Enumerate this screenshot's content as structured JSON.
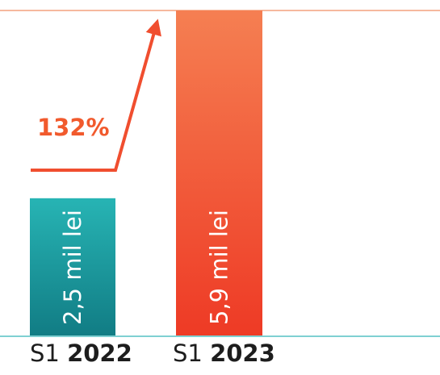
{
  "chart_data": {
    "type": "bar",
    "categories": [
      {
        "prefix": "S1",
        "year": "2022"
      },
      {
        "prefix": "S1",
        "year": "2023"
      }
    ],
    "values": [
      2.5,
      5.9
    ],
    "data_labels": [
      "2,5 mil lei",
      "5,9 mil lei"
    ],
    "ylim": [
      0,
      5.9
    ],
    "annotation": "132%",
    "grid": false,
    "colors": {
      "bar_2022_top": "#27b4b4",
      "bar_2022_bottom": "#117c84",
      "bar_2023_top": "#f57f52",
      "bar_2023_bottom": "#ee3a25",
      "arrow": "#f04e2f",
      "annotation": "#f15a2d",
      "top_line": "#f4a07e",
      "baseline": "#7fd0d2",
      "bar_label_text": "#ffffff",
      "category_text": "#1d1d1d"
    }
  }
}
